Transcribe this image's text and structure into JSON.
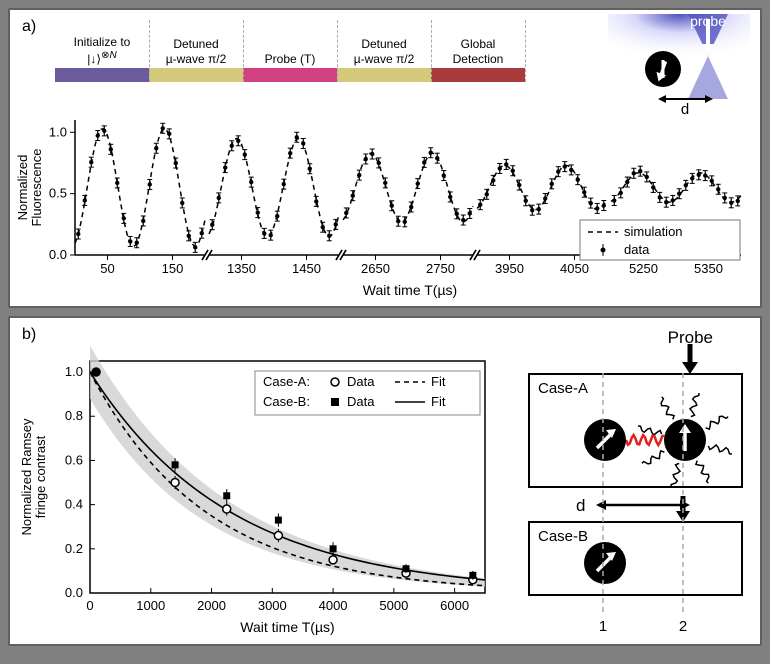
{
  "panel_a_label": "a)",
  "panel_b_label": "b)",
  "sequence": {
    "segments": [
      {
        "label_lines": [
          "Initialize to",
          "|↓⟩⊗N"
        ],
        "width": 94,
        "color": "#6b5b9a"
      },
      {
        "label_lines": [
          "Detuned",
          "µ-wave π/2"
        ],
        "width": 94,
        "color": "#d4c87a"
      },
      {
        "label_lines": [
          "Probe (T)"
        ],
        "width": 94,
        "color": "#d14080"
      },
      {
        "label_lines": [
          "Detuned",
          "µ-wave π/2"
        ],
        "width": 94,
        "color": "#d4c87a"
      },
      {
        "label_lines": [
          "Global",
          "Detection"
        ],
        "width": 94,
        "color": "#a83c3c"
      }
    ]
  },
  "probe_inset": {
    "probe_label": "probe",
    "atom_color": "#000000",
    "beam_color1": "#d8d8fa",
    "beam_color2": "#5050c0",
    "d_label": "d"
  },
  "chart_a": {
    "type": "scatter_with_line_broken_axis",
    "ylabel_lines": [
      "Normalized",
      "Fluorescence"
    ],
    "xlabel": "Wait time T(µs)",
    "ylim": [
      0,
      1.1
    ],
    "yticks": [
      0.0,
      0.5,
      1.0
    ],
    "ytick_labels": [
      "0.0",
      "0.5",
      "1.0"
    ],
    "segment_width": 130,
    "x_segments": [
      {
        "ticks": [
          50,
          150
        ],
        "range": [
          0,
          200
        ]
      },
      {
        "ticks": [
          1350,
          1450
        ],
        "range": [
          1300,
          1500
        ]
      },
      {
        "ticks": [
          2650,
          2750
        ],
        "range": [
          2600,
          2800
        ]
      },
      {
        "ticks": [
          3950,
          4050
        ],
        "range": [
          3900,
          4100
        ]
      },
      {
        "ticks": [
          5250,
          5350
        ],
        "range": [
          5200,
          5400
        ]
      }
    ],
    "sim_line_color": "#000000",
    "sim_line_dash": "5,4",
    "data_marker": "point_with_errorbar",
    "data_color": "#000000",
    "legend": {
      "sim": "simulation",
      "data": "data"
    },
    "amplitude_per_seg": [
      0.48,
      0.4,
      0.28,
      0.18,
      0.12
    ],
    "period_in_units": 95,
    "baseline": 0.55,
    "n_points_per_seg": 20
  },
  "chart_b": {
    "type": "decay_curve",
    "ylabel_lines": [
      "Normalized Ramsey",
      "fringe contrast"
    ],
    "xlabel": "Wait time T(µs)",
    "xlim": [
      0,
      6500
    ],
    "ylim": [
      0,
      1.05
    ],
    "xticks": [
      0,
      1000,
      2000,
      3000,
      4000,
      5000,
      6000
    ],
    "yticks": [
      0.0,
      0.2,
      0.4,
      0.6,
      0.8,
      1.0
    ],
    "band_color": "#d0d0d0",
    "legend": {
      "caseA_label": "Case-A:",
      "caseA_data": "Data",
      "caseA_fit": "Fit",
      "caseB_label": "Case-B:",
      "caseB_data": "Data",
      "caseB_fit": "Fit"
    },
    "caseA": {
      "marker": "open_circle",
      "line_dash": "5,4",
      "x": [
        100,
        1400,
        2250,
        3100,
        4000,
        5200,
        6300
      ],
      "y": [
        1.0,
        0.5,
        0.38,
        0.26,
        0.15,
        0.09,
        0.06
      ],
      "err": [
        0.02,
        0.03,
        0.03,
        0.03,
        0.02,
        0.02,
        0.02
      ],
      "tau": 1900
    },
    "caseB": {
      "marker": "filled_square",
      "line_dash": "none",
      "x": [
        100,
        1400,
        2250,
        3100,
        4000,
        5200,
        6300
      ],
      "y": [
        1.0,
        0.58,
        0.44,
        0.33,
        0.2,
        0.11,
        0.08
      ],
      "err": [
        0.02,
        0.03,
        0.03,
        0.03,
        0.03,
        0.02,
        0.02
      ],
      "tau": 2300
    }
  },
  "diagrams_b": {
    "probe_label": "Probe",
    "caseA_label": "Case-A",
    "caseB_label": "Case-B",
    "d_label": "d",
    "pos1": "1",
    "pos2": "2",
    "photon_color": "#e02020"
  }
}
